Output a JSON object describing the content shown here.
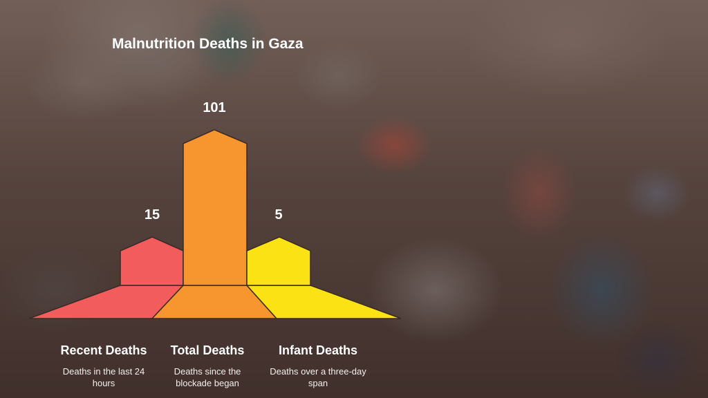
{
  "chart_data": {
    "type": "bar",
    "title": "Malnutrition Deaths in Gaza",
    "categories": [
      "Recent Deaths",
      "Total Deaths",
      "Infant Deaths"
    ],
    "descriptions": [
      "Deaths in the last 24 hours",
      "Deaths since the blockade began",
      "Deaths over a three-day span"
    ],
    "values": [
      15,
      101,
      5
    ],
    "value_labels": [
      "15",
      "101",
      "5"
    ],
    "colors": [
      "#f25c5c",
      "#f7952e",
      "#fbe215"
    ],
    "outline_color": "#3a2a25",
    "xlabel": "",
    "ylabel": "",
    "grid": false,
    "legend": "none"
  }
}
